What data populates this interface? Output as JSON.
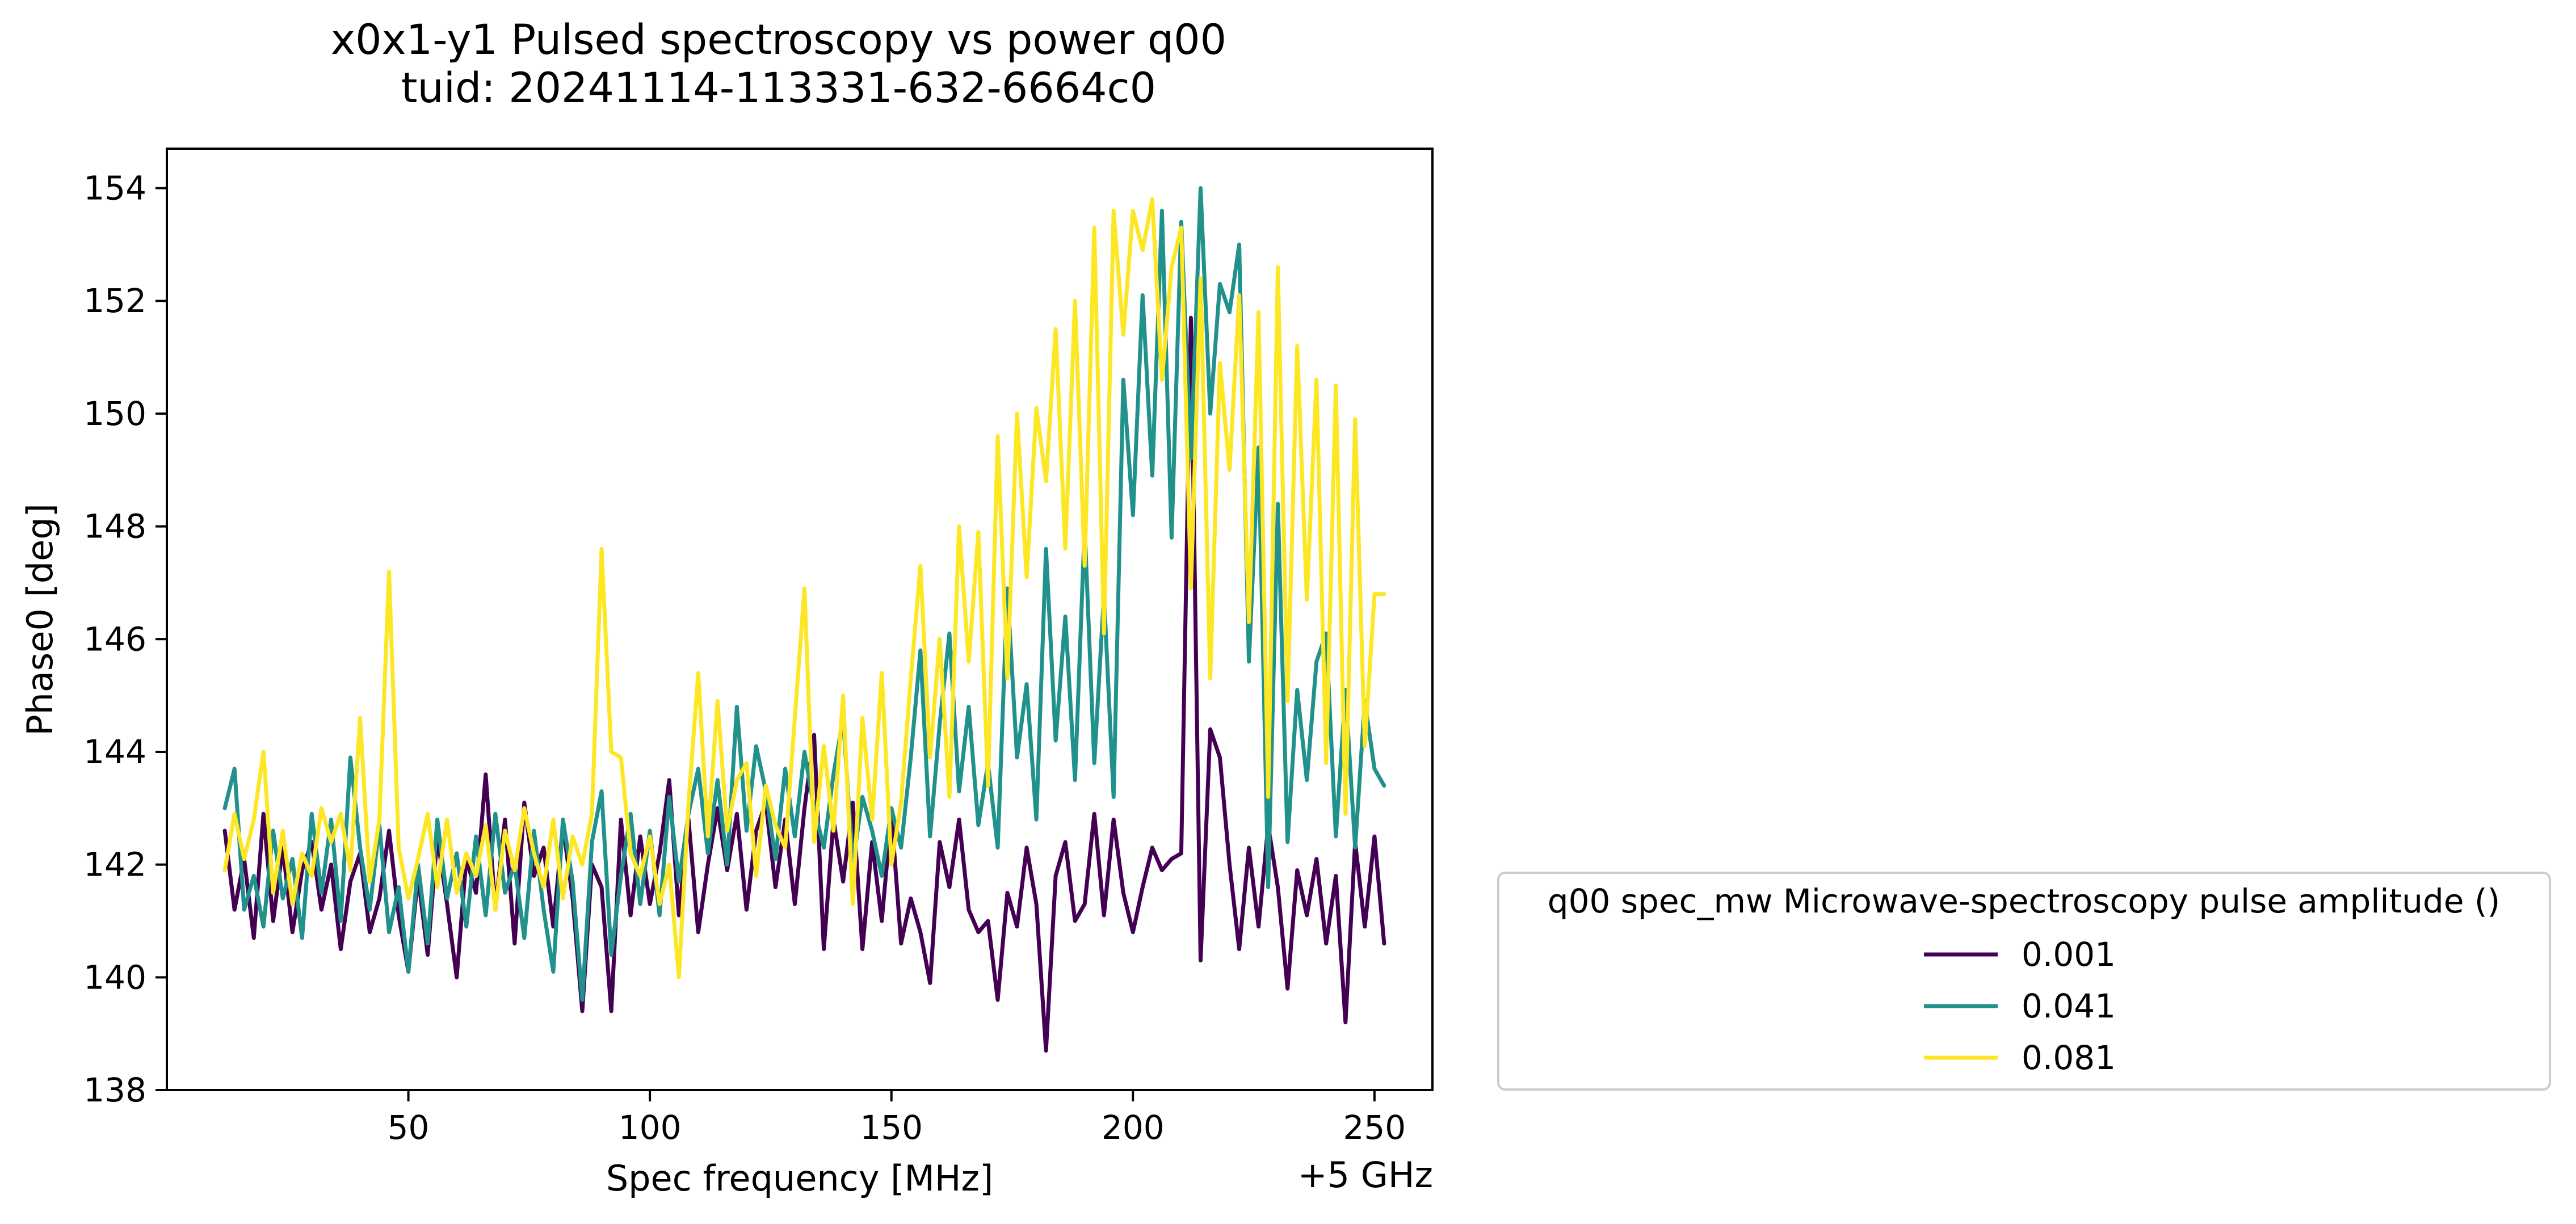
{
  "chart_data": {
    "type": "line",
    "title_line1": "x0x1-y1 Pulsed spectroscopy vs power q00",
    "title_line2": "tuid: 20241114-113331-632-6664c0",
    "xlabel": "Spec frequency [MHz]",
    "x_offset_label": "+5 GHz",
    "ylabel": "Phase0 [deg]",
    "xlim": [
      0,
      262
    ],
    "ylim": [
      138,
      154.7
    ],
    "xticks": [
      50,
      100,
      150,
      200,
      250
    ],
    "yticks": [
      138,
      140,
      142,
      144,
      146,
      148,
      150,
      152,
      154
    ],
    "grid": false,
    "legend": {
      "title": "q00 spec_mw Microwave-spectroscopy pulse amplitude ()",
      "placement": "outside-right-bottom"
    },
    "x": [
      12,
      14,
      16,
      18,
      20,
      22,
      24,
      26,
      28,
      30,
      32,
      34,
      36,
      38,
      40,
      42,
      44,
      46,
      48,
      50,
      52,
      54,
      56,
      58,
      60,
      62,
      64,
      66,
      68,
      70,
      72,
      74,
      76,
      78,
      80,
      82,
      84,
      86,
      88,
      90,
      92,
      94,
      96,
      98,
      100,
      102,
      104,
      106,
      108,
      110,
      112,
      114,
      116,
      118,
      120,
      122,
      124,
      126,
      128,
      130,
      132,
      134,
      136,
      138,
      140,
      142,
      144,
      146,
      148,
      150,
      152,
      154,
      156,
      158,
      160,
      162,
      164,
      166,
      168,
      170,
      172,
      174,
      176,
      178,
      180,
      182,
      184,
      186,
      188,
      190,
      192,
      194,
      196,
      198,
      200,
      202,
      204,
      206,
      208,
      210,
      212,
      214,
      216,
      218,
      220,
      222,
      224,
      226,
      228,
      230,
      232,
      234,
      236,
      238,
      240,
      242,
      244,
      246,
      248,
      250,
      252
    ],
    "series": [
      {
        "name": "0.001",
        "color": "#440154",
        "values": [
          142.6,
          141.2,
          142.1,
          140.7,
          142.9,
          141.0,
          142.3,
          140.8,
          141.9,
          142.4,
          141.2,
          142.0,
          140.5,
          141.7,
          142.2,
          140.8,
          141.4,
          142.6,
          141.1,
          140.1,
          141.8,
          140.4,
          142.5,
          141.3,
          140.0,
          142.1,
          141.5,
          143.6,
          141.2,
          142.8,
          140.6,
          143.1,
          141.8,
          142.3,
          140.9,
          142.7,
          141.4,
          139.4,
          142.0,
          141.6,
          139.4,
          142.8,
          141.1,
          142.5,
          141.3,
          142.2,
          143.5,
          141.1,
          142.8,
          140.8,
          142.0,
          143.0,
          141.9,
          142.9,
          141.2,
          142.6,
          143.1,
          141.6,
          142.8,
          141.3,
          143.0,
          144.3,
          140.5,
          142.8,
          141.7,
          143.1,
          140.5,
          142.4,
          141.0,
          142.9,
          140.6,
          141.4,
          140.8,
          139.9,
          142.4,
          141.6,
          142.8,
          141.2,
          140.8,
          141.0,
          139.6,
          141.5,
          140.9,
          142.3,
          141.3,
          138.7,
          141.8,
          142.4,
          141.0,
          141.3,
          142.9,
          141.1,
          142.8,
          141.5,
          140.8,
          141.6,
          142.3,
          141.9,
          142.1,
          142.2,
          151.7,
          140.3,
          144.4,
          143.9,
          142.0,
          140.5,
          142.3,
          140.9,
          142.7,
          141.6,
          139.8,
          141.9,
          141.1,
          142.1,
          140.6,
          141.8,
          139.2,
          142.4,
          140.9,
          142.5,
          140.6
        ]
      },
      {
        "name": "0.041",
        "color": "#21918c",
        "values": [
          143.0,
          143.7,
          141.2,
          141.8,
          140.9,
          142.6,
          141.4,
          142.1,
          140.7,
          142.9,
          141.5,
          142.8,
          141.0,
          143.9,
          142.3,
          141.2,
          142.7,
          140.8,
          141.6,
          140.1,
          142.0,
          140.6,
          142.8,
          141.4,
          142.2,
          140.9,
          142.5,
          141.1,
          142.9,
          141.5,
          142.0,
          140.7,
          142.6,
          141.2,
          140.1,
          142.8,
          141.7,
          139.6,
          142.4,
          143.3,
          140.4,
          141.8,
          142.9,
          141.3,
          142.6,
          141.1,
          143.2,
          141.7,
          142.9,
          143.7,
          142.2,
          143.5,
          142.0,
          144.8,
          142.6,
          144.1,
          143.3,
          142.1,
          143.7,
          142.5,
          144.0,
          143.0,
          142.3,
          143.6,
          144.6,
          142.0,
          143.2,
          142.6,
          141.8,
          143.0,
          142.3,
          143.9,
          145.8,
          142.5,
          144.5,
          146.1,
          143.3,
          144.8,
          142.7,
          143.8,
          142.3,
          146.9,
          143.9,
          145.2,
          142.8,
          147.6,
          144.2,
          146.4,
          143.5,
          148.0,
          143.8,
          146.8,
          143.2,
          150.6,
          148.2,
          152.1,
          148.9,
          153.6,
          147.8,
          153.4,
          149.2,
          154.0,
          150.0,
          152.3,
          151.8,
          153.0,
          145.6,
          149.4,
          141.6,
          148.4,
          142.4,
          145.1,
          143.5,
          145.6,
          146.1,
          142.5,
          145.1,
          142.3,
          144.9,
          143.7,
          143.4
        ]
      },
      {
        "name": "0.081",
        "color": "#fde725",
        "values": [
          141.9,
          142.9,
          142.1,
          142.8,
          144.0,
          141.5,
          142.6,
          141.3,
          142.2,
          141.8,
          143.0,
          142.4,
          142.9,
          141.9,
          144.6,
          141.7,
          142.8,
          147.2,
          142.3,
          141.4,
          142.1,
          142.9,
          141.6,
          142.8,
          141.5,
          142.2,
          141.8,
          142.7,
          141.2,
          142.6,
          141.9,
          143.0,
          142.2,
          141.6,
          142.8,
          141.4,
          142.5,
          142.0,
          142.9,
          147.6,
          144.0,
          143.9,
          142.2,
          141.8,
          142.5,
          141.3,
          142.0,
          140.0,
          143.1,
          145.4,
          142.5,
          144.9,
          142.6,
          143.5,
          143.8,
          141.8,
          143.4,
          142.7,
          142.3,
          144.6,
          146.9,
          142.4,
          144.1,
          142.6,
          145.0,
          141.3,
          144.6,
          142.8,
          145.4,
          142.0,
          143.1,
          145.3,
          147.3,
          143.9,
          146.0,
          143.2,
          148.0,
          145.6,
          147.9,
          143.4,
          149.6,
          145.3,
          150.0,
          147.1,
          150.1,
          148.8,
          151.5,
          147.6,
          152.0,
          147.3,
          153.3,
          146.1,
          153.6,
          151.4,
          153.6,
          152.9,
          153.8,
          150.6,
          152.6,
          153.3,
          146.9,
          152.4,
          145.3,
          150.9,
          149.0,
          152.1,
          146.3,
          151.8,
          143.2,
          152.6,
          144.9,
          151.2,
          146.7,
          150.6,
          143.8,
          150.5,
          142.9,
          149.9,
          144.1,
          146.8,
          146.8
        ]
      }
    ]
  }
}
